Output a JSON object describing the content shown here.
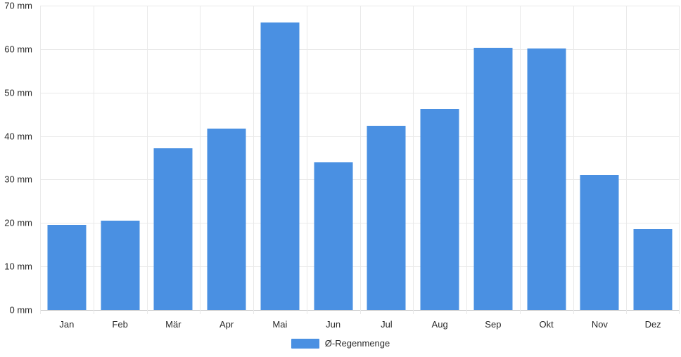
{
  "chart_data": {
    "type": "bar",
    "categories": [
      "Jan",
      "Feb",
      "Mär",
      "Apr",
      "Mai",
      "Jun",
      "Jul",
      "Aug",
      "Sep",
      "Okt",
      "Nov",
      "Dez"
    ],
    "values": [
      19.5,
      20.6,
      37.2,
      41.7,
      66.1,
      34.0,
      42.4,
      46.3,
      60.3,
      60.1,
      31.0,
      18.6
    ],
    "title": "",
    "xlabel": "",
    "ylabel": "",
    "unit": "mm",
    "ylim": [
      0,
      70
    ],
    "ytick_step": 10,
    "ytick_labels": [
      "70 mm",
      "60 mm",
      "50 mm",
      "40 mm",
      "30 mm",
      "20 mm",
      "10 mm",
      "0 mm"
    ],
    "grid": true,
    "legend_position": "bottom",
    "series_name": "Ø-Regenmenge",
    "bar_color": "#4a90e2",
    "gridline_color": "#e9e9e9",
    "axis_line_color": "#c2c2c2",
    "text_color": "#2b2b2b",
    "background_color": "#ffffff"
  },
  "legend": {
    "label": "Ø-Regenmenge"
  }
}
